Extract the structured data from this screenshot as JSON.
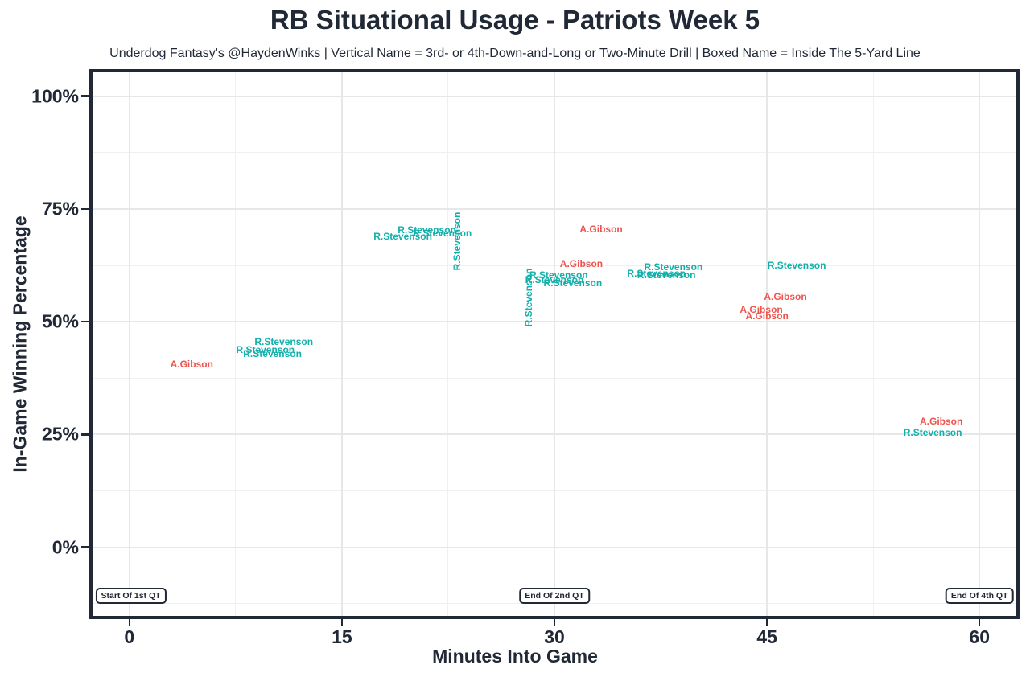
{
  "chart_data": {
    "type": "scatter",
    "title": "RB Situational Usage - Patriots Week 5",
    "subtitle": "Underdog Fantasy's @HaydenWinks | Vertical Name = 3rd- or 4th-Down-and-Long or Two-Minute Drill | Boxed Name = Inside The 5-Yard Line",
    "xlabel": "Minutes Into Game",
    "ylabel": "In-Game Winning Percentage",
    "xlim": [
      -2.6,
      62.6
    ],
    "ylim": [
      -15.2,
      105.3
    ],
    "x_ticks": [
      0,
      15,
      30,
      45,
      60
    ],
    "x_tick_labels": [
      "0",
      "15",
      "30",
      "45",
      "60"
    ],
    "x_minor_ticks": [
      7.5,
      22.5,
      37.5,
      52.5
    ],
    "y_ticks": [
      0,
      25,
      50,
      75,
      100
    ],
    "y_tick_labels": [
      "0%",
      "25%",
      "50%",
      "75%",
      "100%"
    ],
    "y_minor_ticks": [
      -12.5,
      12.5,
      37.5,
      62.5,
      87.5
    ],
    "grid": true,
    "legend_position": "none",
    "point_style": "player-name text labels; vertical label = 3rd- or 4th-down-and-long or two-minute drill; boxed label = inside the 5-yard line",
    "series": [
      {
        "name": "R.Stevenson",
        "color": "#12b0ab",
        "points": [
          {
            "x": 9.6,
            "y": 43.8,
            "orientation": "horizontal"
          },
          {
            "x": 10.1,
            "y": 43.0,
            "orientation": "horizontal"
          },
          {
            "x": 10.9,
            "y": 45.5,
            "orientation": "horizontal"
          },
          {
            "x": 19.3,
            "y": 68.9,
            "orientation": "horizontal"
          },
          {
            "x": 21.0,
            "y": 70.3,
            "orientation": "horizontal"
          },
          {
            "x": 22.1,
            "y": 69.6,
            "orientation": "horizontal"
          },
          {
            "x": 23.1,
            "y": 67.8,
            "orientation": "vertical"
          },
          {
            "x": 28.2,
            "y": 55.4,
            "orientation": "vertical"
          },
          {
            "x": 30.0,
            "y": 59.3,
            "orientation": "horizontal"
          },
          {
            "x": 30.3,
            "y": 60.3,
            "orientation": "horizontal"
          },
          {
            "x": 31.3,
            "y": 58.6,
            "orientation": "horizontal"
          },
          {
            "x": 37.2,
            "y": 60.7,
            "orientation": "horizontal"
          },
          {
            "x": 37.9,
            "y": 60.3,
            "orientation": "horizontal"
          },
          {
            "x": 38.4,
            "y": 62.1,
            "orientation": "horizontal"
          },
          {
            "x": 47.1,
            "y": 62.5,
            "orientation": "horizontal"
          },
          {
            "x": 56.7,
            "y": 25.4,
            "orientation": "horizontal"
          }
        ]
      },
      {
        "name": "A.Gibson",
        "color": "#f0534e",
        "points": [
          {
            "x": 4.4,
            "y": 40.6,
            "orientation": "horizontal"
          },
          {
            "x": 31.9,
            "y": 62.9,
            "orientation": "horizontal"
          },
          {
            "x": 33.3,
            "y": 70.5,
            "orientation": "horizontal"
          },
          {
            "x": 44.6,
            "y": 52.7,
            "orientation": "horizontal"
          },
          {
            "x": 45.0,
            "y": 51.3,
            "orientation": "horizontal"
          },
          {
            "x": 46.3,
            "y": 55.5,
            "orientation": "horizontal"
          },
          {
            "x": 57.3,
            "y": 27.9,
            "orientation": "horizontal"
          }
        ]
      }
    ],
    "annotations": [
      {
        "label": "Start Of 1st QT",
        "x": 0.1,
        "y": -10.8
      },
      {
        "label": "End Of 2nd QT",
        "x": 30.0,
        "y": -10.8
      },
      {
        "label": "End Of 4th QT",
        "x": 60.0,
        "y": -10.8
      }
    ],
    "theme": {
      "text_color": "#212836",
      "grid_major_color": "#e7e7e7",
      "grid_minor_color": "#f0f0f0",
      "panel_border_color": "#212836",
      "background": "#ffffff"
    }
  }
}
